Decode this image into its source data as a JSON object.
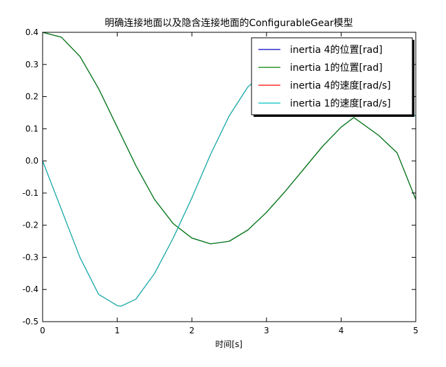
{
  "chart_data": {
    "type": "line",
    "title": "明确连接地面以及隐含连接地面的ConfigurableGear模型",
    "xlabel": "时间[s]",
    "ylabel": "",
    "xlim": [
      0,
      5
    ],
    "ylim": [
      -0.5,
      0.4
    ],
    "x_ticks": [
      "0",
      "1",
      "2",
      "3",
      "4",
      "5"
    ],
    "y_ticks": [
      "0.4",
      "0.3",
      "0.2",
      "0.1",
      "0.0",
      "-0.1",
      "-0.2",
      "-0.3",
      "-0.4",
      "-0.5"
    ],
    "grid": false,
    "legend_position": "top-right",
    "series": [
      {
        "name": "inertia 4的位置[rad]",
        "color": "#0000bf",
        "x": [
          0,
          0.25,
          0.5,
          0.75,
          1.0,
          1.25,
          1.5,
          1.75,
          2.0,
          2.25,
          2.5,
          2.75,
          3.0,
          3.25,
          3.5,
          3.75,
          4.0,
          4.17,
          4.5,
          4.75,
          5.0
        ],
        "y": [
          0.4,
          0.385,
          0.325,
          0.225,
          0.105,
          -0.015,
          -0.12,
          -0.195,
          -0.24,
          -0.258,
          -0.25,
          -0.215,
          -0.16,
          -0.095,
          -0.025,
          0.045,
          0.105,
          0.135,
          0.08,
          0.025,
          -0.12
        ]
      },
      {
        "name": "inertia 1的位置[rad]",
        "color": "#008000",
        "x": [
          0,
          0.25,
          0.5,
          0.75,
          1.0,
          1.25,
          1.5,
          1.75,
          2.0,
          2.25,
          2.5,
          2.75,
          3.0,
          3.25,
          3.5,
          3.75,
          4.0,
          4.17,
          4.5,
          4.75,
          5.0
        ],
        "y": [
          0.4,
          0.385,
          0.325,
          0.225,
          0.105,
          -0.015,
          -0.12,
          -0.195,
          -0.24,
          -0.258,
          -0.25,
          -0.215,
          -0.16,
          -0.095,
          -0.025,
          0.045,
          0.105,
          0.135,
          0.08,
          0.025,
          -0.12
        ]
      },
      {
        "name": "inertia 4的速度[rad/s]",
        "color": "#ff0000",
        "x": [
          0,
          0.25,
          0.5,
          0.75,
          1.0,
          1.05,
          1.25,
          1.5,
          1.75,
          2.0,
          2.25,
          2.5,
          2.75,
          3.0,
          3.25,
          3.5,
          3.75,
          4.0,
          4.17,
          4.5,
          4.75,
          5.0
        ],
        "y": [
          0.0,
          -0.15,
          -0.3,
          -0.415,
          -0.45,
          -0.452,
          -0.43,
          -0.35,
          -0.24,
          -0.115,
          0.02,
          0.14,
          0.23,
          0.28,
          0.285,
          0.255,
          0.205,
          0.165,
          0.15,
          0.19,
          0.175,
          0.14
        ]
      },
      {
        "name": "inertia 1的速度[rad/s]",
        "color": "#00bfbf",
        "x": [
          0,
          0.25,
          0.5,
          0.75,
          1.0,
          1.05,
          1.25,
          1.5,
          1.75,
          2.0,
          2.25,
          2.5,
          2.75,
          3.0,
          3.25,
          3.5,
          3.75,
          4.0,
          4.17,
          4.5,
          4.75,
          5.0
        ],
        "y": [
          0.0,
          -0.15,
          -0.3,
          -0.415,
          -0.45,
          -0.452,
          -0.43,
          -0.35,
          -0.24,
          -0.115,
          0.02,
          0.14,
          0.23,
          0.28,
          0.285,
          0.255,
          0.205,
          0.165,
          0.15,
          0.19,
          0.175,
          0.14
        ]
      }
    ]
  }
}
